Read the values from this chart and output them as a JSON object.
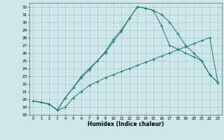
{
  "xlabel": "Humidex (Indice chaleur)",
  "background_color": "#cce8e8",
  "grid_color": "#aabbcc",
  "line_color": "#1a7a6e",
  "xlim": [
    -0.5,
    23.5
  ],
  "ylim": [
    18,
    32.5
  ],
  "yticks": [
    18,
    19,
    20,
    21,
    22,
    23,
    24,
    25,
    26,
    27,
    28,
    29,
    30,
    31,
    32
  ],
  "xticks": [
    0,
    1,
    2,
    3,
    4,
    5,
    6,
    7,
    8,
    9,
    10,
    11,
    12,
    13,
    14,
    15,
    16,
    17,
    18,
    19,
    20,
    21,
    22,
    23
  ],
  "line1_x": [
    0,
    1,
    2,
    3,
    4,
    5,
    6,
    7,
    8,
    9,
    10,
    11,
    12,
    13,
    14,
    15,
    16,
    17,
    18,
    19,
    20,
    21,
    22,
    23
  ],
  "line1_y": [
    19.8,
    19.6,
    19.4,
    18.6,
    19.0,
    20.2,
    21.0,
    21.8,
    22.3,
    22.8,
    23.2,
    23.6,
    24.0,
    24.4,
    24.8,
    25.2,
    25.6,
    26.0,
    26.4,
    26.8,
    27.2,
    27.6,
    28.0,
    22.2
  ],
  "line2_x": [
    0,
    1,
    2,
    3,
    4,
    5,
    6,
    7,
    8,
    9,
    10,
    11,
    12,
    13,
    14,
    15,
    16,
    17,
    18,
    19,
    20,
    21,
    22,
    23
  ],
  "line2_y": [
    19.8,
    19.6,
    19.4,
    18.6,
    20.2,
    21.5,
    23.0,
    24.0,
    25.0,
    26.0,
    27.5,
    28.8,
    30.5,
    32.0,
    31.8,
    31.5,
    29.5,
    27.0,
    26.5,
    26.0,
    25.5,
    25.0,
    23.2,
    22.2
  ],
  "line3_x": [
    0,
    1,
    2,
    3,
    4,
    5,
    6,
    7,
    8,
    9,
    10,
    11,
    12,
    13,
    14,
    15,
    16,
    17,
    18,
    19,
    20,
    21,
    22,
    23
  ],
  "line3_y": [
    19.8,
    19.6,
    19.4,
    18.6,
    20.2,
    21.5,
    22.8,
    23.8,
    25.0,
    26.2,
    27.8,
    29.0,
    30.5,
    32.0,
    31.8,
    31.5,
    31.0,
    30.0,
    28.5,
    27.0,
    26.0,
    25.0,
    23.2,
    22.2
  ]
}
